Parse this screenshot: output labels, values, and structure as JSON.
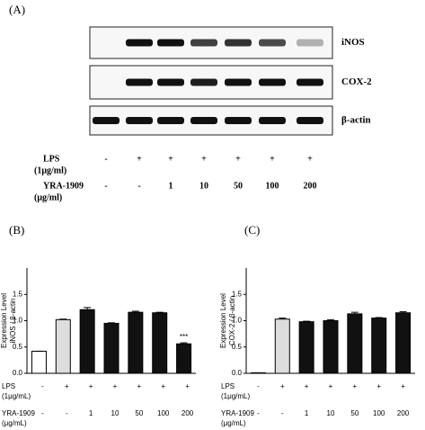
{
  "panel_a": {
    "label": "(A)",
    "blot_labels": [
      "iNOS",
      "COX-2",
      "β-actin"
    ],
    "rows": [
      {
        "label": [
          "LPS",
          "(1μg/ml)"
        ],
        "values": [
          "-",
          "+",
          "+",
          "+",
          "+",
          "+",
          "+"
        ]
      },
      {
        "label": [
          "YRA-1909",
          "(μg/ml)"
        ],
        "values": [
          "-",
          "-",
          "1",
          "10",
          "50",
          "100",
          "200"
        ]
      }
    ]
  },
  "chart_data": [
    {
      "type": "bar",
      "panel": "(B)",
      "ylabel": [
        "Expression Level",
        "iNOS / β-actin"
      ],
      "values": [
        0.42,
        1.02,
        1.21,
        0.95,
        1.16,
        1.15,
        0.56
      ],
      "errors": [
        0,
        0.01,
        0.04,
        0.01,
        0.02,
        0.01,
        0.02
      ],
      "annotations": [
        null,
        null,
        null,
        null,
        null,
        null,
        "***"
      ],
      "colors": [
        "#ffffff",
        "#dddddd",
        "#111111",
        "#111111",
        "#111111",
        "#111111",
        "#111111"
      ],
      "ylim": [
        0,
        2.0
      ],
      "yticks": [
        {
          "value": 0,
          "label": "0.0"
        },
        {
          "value": 0.5,
          "label": "0.5"
        },
        {
          "value": 1,
          "label": "1.0"
        },
        {
          "value": 1.5,
          "label": "1.5"
        }
      ],
      "rows": [
        {
          "label": [
            "LPS",
            "(1μg/mL)"
          ],
          "values": [
            "-",
            "+",
            "+",
            "+",
            "+",
            "+",
            "+"
          ]
        },
        {
          "label": [
            "YRA-1909",
            "(μg/mL)"
          ],
          "values": [
            "-",
            "-",
            "1",
            "10",
            "50",
            "100",
            "200"
          ]
        }
      ]
    },
    {
      "type": "bar",
      "panel": "(C)",
      "ylabel": [
        "Expression Level",
        "COX-2 / β-actin"
      ],
      "values": [
        0.01,
        1.03,
        0.98,
        1.0,
        1.13,
        1.05,
        1.15
      ],
      "errors": [
        0,
        0.02,
        0.01,
        0.02,
        0.03,
        0.01,
        0.02
      ],
      "colors": [
        "#ffffff",
        "#dddddd",
        "#111111",
        "#111111",
        "#111111",
        "#111111",
        "#111111"
      ],
      "ylim": [
        0,
        2.0
      ],
      "yticks": [
        {
          "value": 0,
          "label": "0.0"
        },
        {
          "value": 0.5,
          "label": "0.5"
        },
        {
          "value": 1,
          "label": "1.0"
        },
        {
          "value": 1.5,
          "label": "1.5"
        }
      ],
      "rows": [
        {
          "label": [
            "LPS",
            "(1μg/mL)"
          ],
          "values": [
            "-",
            "+",
            "+",
            "+",
            "+",
            "+",
            "+"
          ]
        },
        {
          "label": [
            "YRA-1909",
            "(μg/mL)"
          ],
          "values": [
            "-",
            "-",
            "1",
            "10",
            "50",
            "100",
            "200"
          ]
        }
      ]
    }
  ]
}
